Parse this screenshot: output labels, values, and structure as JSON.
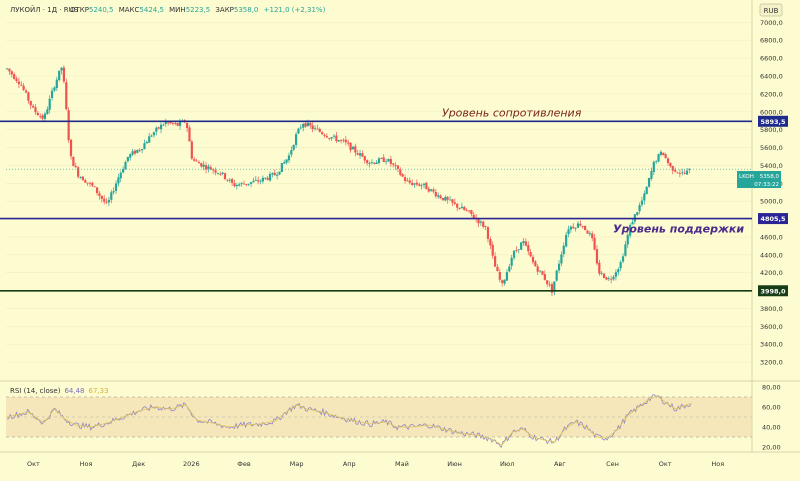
{
  "header": {
    "symbol_text": "ЛУКОЙЛ · 1Д · RUS",
    "open_label": "ОТКР",
    "open_value": "5240,5",
    "high_label": "МАКС",
    "high_value": "5424,5",
    "low_label": "МИН",
    "low_value": "5223,5",
    "close_label": "ЗАКР",
    "close_value": "5358,0",
    "change_text": "+121,0 (+2,31%)"
  },
  "currency": "RUB",
  "last_price_tag": {
    "ticker": "LKOH",
    "price": "5358,0",
    "countdown": "07:33:22"
  },
  "levels": [
    {
      "name": "resistance",
      "value": 5893.5,
      "label": "5893,5",
      "caption": "Уровень сопротивления",
      "color": "#1e2a8c"
    },
    {
      "name": "support",
      "value": 4805.5,
      "label": "4805,5",
      "caption": "Уровень поддержки",
      "color": "#2b2494"
    },
    {
      "name": "bottom",
      "value": 3998.0,
      "label": "3998,0",
      "caption": "",
      "color": "#173d17"
    }
  ],
  "rsi": {
    "title": "RSI (14, close)",
    "value1": "64,48",
    "value2": "67,33",
    "ticks": [
      "80,00",
      "60,00",
      "40,00",
      "20,00"
    ]
  },
  "chart_data": {
    "type": "candlestick",
    "price_axis": {
      "ylim": [
        3000,
        7250
      ],
      "ticks": [
        7000,
        6800,
        6600,
        6400,
        6200,
        6000,
        5800,
        5600,
        5400,
        5200,
        5000,
        4800,
        4600,
        4400,
        4200,
        4000,
        3800,
        3600,
        3400,
        3200
      ],
      "tick_labels": [
        "7000,0",
        "6800,0",
        "6600,0",
        "6400,0",
        "6200,0",
        "6000,0",
        "5800,0",
        "5600,0",
        "5400,0",
        "5200,0",
        "5000,0",
        "4800,0",
        "4600,0",
        "4400,0",
        "4200,0",
        "4000,0",
        "3800,0",
        "3600,0",
        "3400,0",
        "3200,0"
      ]
    },
    "x_axis": {
      "labels": [
        "Окт",
        "Ноя",
        "Дек",
        "2026",
        "Фев",
        "Мар",
        "Апр",
        "Май",
        "Июн",
        "Июл",
        "Авг",
        "Сен",
        "Окт",
        "Ноя"
      ],
      "positions": [
        0.6,
        1.6,
        2.6,
        3.6,
        4.6,
        5.6,
        6.6,
        7.6,
        8.6,
        9.6,
        10.6,
        11.6,
        12.6,
        13.6
      ],
      "range": [
        0.08,
        14.25
      ]
    },
    "price_path": [
      [
        0.1,
        6480
      ],
      [
        0.35,
        6320
      ],
      [
        0.6,
        6020
      ],
      [
        0.8,
        5920
      ],
      [
        1.0,
        6300
      ],
      [
        1.15,
        6520
      ],
      [
        1.3,
        5500
      ],
      [
        1.45,
        5300
      ],
      [
        1.75,
        5150
      ],
      [
        2.0,
        4950
      ],
      [
        2.2,
        5250
      ],
      [
        2.4,
        5500
      ],
      [
        2.65,
        5600
      ],
      [
        2.85,
        5750
      ],
      [
        3.1,
        5880
      ],
      [
        3.35,
        5850
      ],
      [
        3.5,
        5900
      ],
      [
        3.62,
        5460
      ],
      [
        3.9,
        5380
      ],
      [
        4.15,
        5320
      ],
      [
        4.4,
        5180
      ],
      [
        4.65,
        5200
      ],
      [
        4.9,
        5230
      ],
      [
        5.2,
        5300
      ],
      [
        5.45,
        5500
      ],
      [
        5.6,
        5750
      ],
      [
        5.72,
        5880
      ],
      [
        5.9,
        5820
      ],
      [
        6.2,
        5730
      ],
      [
        6.5,
        5660
      ],
      [
        6.75,
        5540
      ],
      [
        7.0,
        5430
      ],
      [
        7.3,
        5470
      ],
      [
        7.45,
        5390
      ],
      [
        7.7,
        5210
      ],
      [
        8.0,
        5180
      ],
      [
        8.3,
        5060
      ],
      [
        8.6,
        4960
      ],
      [
        8.9,
        4860
      ],
      [
        9.2,
        4700
      ],
      [
        9.35,
        4300
      ],
      [
        9.5,
        4050
      ],
      [
        9.7,
        4400
      ],
      [
        9.9,
        4550
      ],
      [
        10.1,
        4300
      ],
      [
        10.3,
        4150
      ],
      [
        10.45,
        4000
      ],
      [
        10.6,
        4350
      ],
      [
        10.75,
        4700
      ],
      [
        11.0,
        4750
      ],
      [
        11.2,
        4600
      ],
      [
        11.35,
        4200
      ],
      [
        11.55,
        4120
      ],
      [
        11.75,
        4300
      ],
      [
        11.95,
        4750
      ],
      [
        12.2,
        5050
      ],
      [
        12.4,
        5450
      ],
      [
        12.55,
        5550
      ],
      [
        12.7,
        5380
      ],
      [
        12.95,
        5300
      ],
      [
        13.1,
        5358
      ]
    ],
    "rsi_path": [
      [
        0.1,
        50
      ],
      [
        0.5,
        55
      ],
      [
        0.8,
        44
      ],
      [
        1.0,
        58
      ],
      [
        1.2,
        48
      ],
      [
        1.4,
        42
      ],
      [
        1.7,
        40
      ],
      [
        2.0,
        44
      ],
      [
        2.3,
        50
      ],
      [
        2.6,
        56
      ],
      [
        2.9,
        60
      ],
      [
        3.2,
        58
      ],
      [
        3.5,
        62
      ],
      [
        3.7,
        47
      ],
      [
        4.0,
        44
      ],
      [
        4.3,
        40
      ],
      [
        4.6,
        42
      ],
      [
        4.9,
        43
      ],
      [
        5.2,
        46
      ],
      [
        5.4,
        55
      ],
      [
        5.6,
        62
      ],
      [
        5.8,
        58
      ],
      [
        6.1,
        55
      ],
      [
        6.4,
        50
      ],
      [
        6.7,
        46
      ],
      [
        7.0,
        43
      ],
      [
        7.3,
        45
      ],
      [
        7.5,
        40
      ],
      [
        7.8,
        40
      ],
      [
        8.1,
        42
      ],
      [
        8.4,
        38
      ],
      [
        8.7,
        34
      ],
      [
        9.0,
        32
      ],
      [
        9.3,
        28
      ],
      [
        9.5,
        22
      ],
      [
        9.7,
        35
      ],
      [
        9.9,
        38
      ],
      [
        10.1,
        30
      ],
      [
        10.3,
        27
      ],
      [
        10.5,
        25
      ],
      [
        10.7,
        38
      ],
      [
        10.9,
        45
      ],
      [
        11.1,
        40
      ],
      [
        11.3,
        30
      ],
      [
        11.5,
        29
      ],
      [
        11.7,
        38
      ],
      [
        11.9,
        52
      ],
      [
        12.1,
        60
      ],
      [
        12.3,
        68
      ],
      [
        12.45,
        71
      ],
      [
        12.6,
        65
      ],
      [
        12.8,
        58
      ],
      [
        13.1,
        64
      ]
    ],
    "rsi_ylim": [
      15,
      85
    ],
    "series_colors": {
      "up": "#26a69a",
      "down": "#ef5350",
      "rsi": "#8f85c8",
      "rsi_ma": "#e2c25a"
    }
  }
}
